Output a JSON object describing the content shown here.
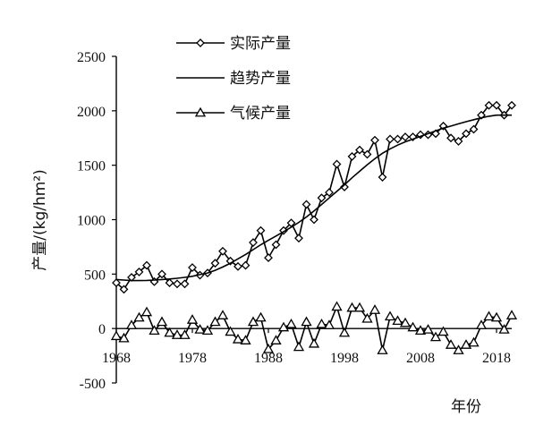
{
  "chart_data": {
    "type": "line",
    "xlabel": "年份",
    "ylabel": "产量/(kg/hm²)",
    "ylim": [
      -500,
      2500
    ],
    "xlim": [
      1968,
      2020
    ],
    "yticks": [
      -500,
      0,
      500,
      1000,
      1500,
      2000,
      2500
    ],
    "xticks": [
      1968,
      1978,
      1988,
      1998,
      2008,
      2018
    ],
    "grid": false,
    "legend_position": "top-left",
    "x": [
      1968,
      1969,
      1970,
      1971,
      1972,
      1973,
      1974,
      1975,
      1976,
      1977,
      1978,
      1979,
      1980,
      1981,
      1982,
      1983,
      1984,
      1985,
      1986,
      1987,
      1988,
      1989,
      1990,
      1991,
      1992,
      1993,
      1994,
      1995,
      1996,
      1997,
      1998,
      1999,
      2000,
      2001,
      2002,
      2003,
      2004,
      2005,
      2006,
      2007,
      2008,
      2009,
      2010,
      2011,
      2012,
      2013,
      2014,
      2015,
      2016,
      2017,
      2018,
      2019,
      2020
    ],
    "series": [
      {
        "name": "实际产量",
        "marker": "diamond",
        "values": [
          420,
          360,
          470,
          520,
          580,
          430,
          500,
          420,
          410,
          410,
          560,
          490,
          510,
          600,
          710,
          620,
          570,
          580,
          790,
          900,
          650,
          770,
          900,
          970,
          830,
          1140,
          1000,
          1200,
          1250,
          1510,
          1300,
          1580,
          1640,
          1600,
          1730,
          1390,
          1740,
          1740,
          1760,
          1760,
          1780,
          1780,
          1790,
          1860,
          1750,
          1720,
          1790,
          1830,
          1960,
          2050,
          2050,
          1960,
          2050
        ]
      },
      {
        "name": "趋势产量",
        "marker": "none",
        "values": [
          450,
          445,
          440,
          440,
          442,
          445,
          450,
          455,
          462,
          470,
          480,
          495,
          510,
          535,
          565,
          600,
          640,
          680,
          725,
          770,
          810,
          850,
          890,
          930,
          975,
          1025,
          1080,
          1140,
          1200,
          1260,
          1320,
          1385,
          1445,
          1505,
          1560,
          1610,
          1650,
          1685,
          1715,
          1740,
          1765,
          1790,
          1815,
          1840,
          1860,
          1880,
          1900,
          1918,
          1935,
          1950,
          1960,
          1960,
          1960
        ]
      },
      {
        "name": "气候产量",
        "marker": "triangle",
        "values": [
          -70,
          -90,
          30,
          100,
          150,
          -20,
          60,
          -40,
          -60,
          -60,
          80,
          -10,
          -20,
          60,
          120,
          -30,
          -100,
          -110,
          60,
          100,
          -190,
          -110,
          10,
          40,
          -170,
          60,
          -140,
          40,
          30,
          200,
          -40,
          190,
          190,
          90,
          170,
          -200,
          110,
          70,
          50,
          10,
          -20,
          -10,
          -80,
          -30,
          -150,
          -200,
          -150,
          -130,
          30,
          110,
          100,
          -10,
          120
        ]
      }
    ]
  }
}
